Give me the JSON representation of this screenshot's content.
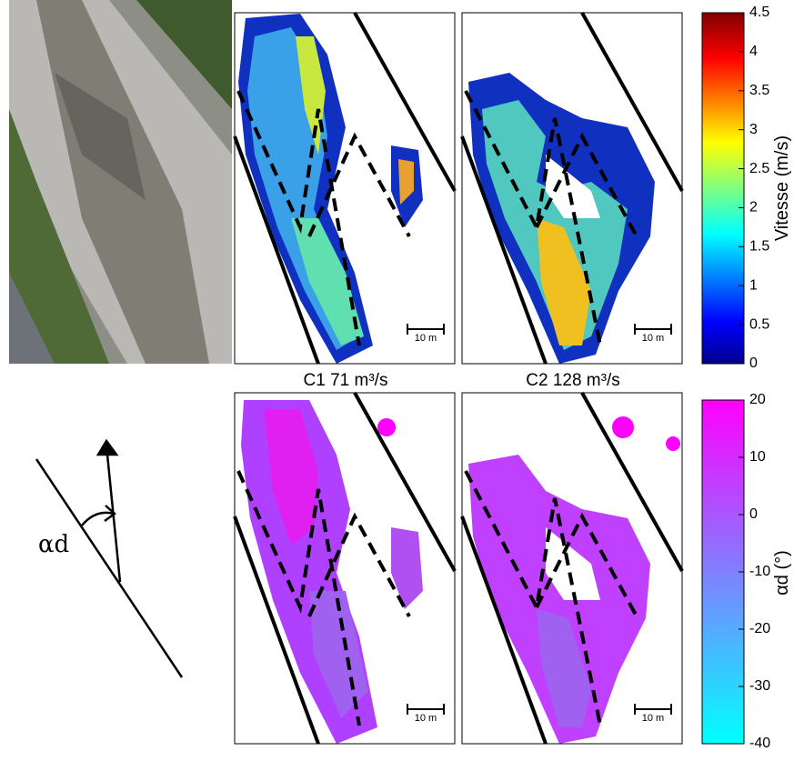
{
  "panels": [
    {
      "label": "C1 71 m³/s",
      "scale_label": "10 m"
    },
    {
      "label": "C2 128 m³/s",
      "scale_label": "10 m"
    }
  ],
  "bottom_scale_labels": [
    "10 m",
    "10 m"
  ],
  "velocity_colorbar": {
    "label": "Vitesse (m/s)",
    "lim": [
      0,
      4.5
    ],
    "ticks": [
      0,
      0.5,
      1,
      1.5,
      2,
      2.5,
      3,
      3.5,
      4,
      4.5
    ]
  },
  "angle_colorbar": {
    "label": "αd (°)",
    "lim": [
      -40,
      20
    ],
    "ticks": [
      -40,
      -30,
      -20,
      -10,
      0,
      10,
      20
    ]
  },
  "schematic": {
    "label": "αd"
  }
}
